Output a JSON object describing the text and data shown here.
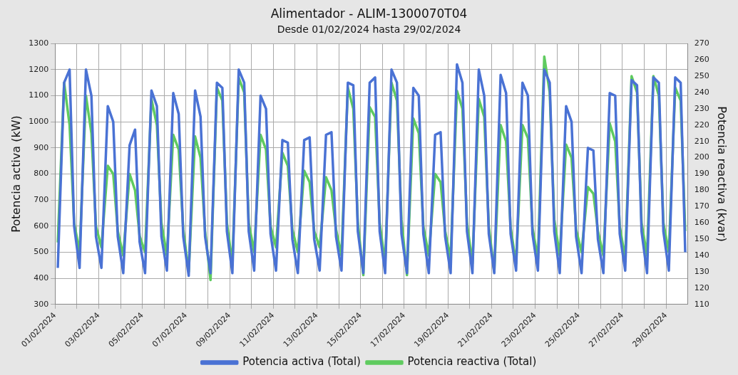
{
  "chart_data": {
    "type": "line",
    "title": "Alimentador - ALIM-1300070T04",
    "subtitle": "Desde 01/02/2024 hasta 29/02/2024",
    "ylabel": "Potencia activa (kW)",
    "y2label": "Potencia reactiva (kvar)",
    "x": [
      "2024-02-01T03:00",
      "2024-02-01T10:00",
      "2024-02-01T16:00",
      "2024-02-01T21:00",
      "2024-02-02T03:00",
      "2024-02-02T10:00",
      "2024-02-02T16:00",
      "2024-02-02T21:00",
      "2024-02-03T03:00",
      "2024-02-03T10:00",
      "2024-02-03T16:00",
      "2024-02-03T21:00",
      "2024-02-04T03:00",
      "2024-02-04T10:00",
      "2024-02-04T16:00",
      "2024-02-04T21:00",
      "2024-02-05T03:00",
      "2024-02-05T10:00",
      "2024-02-05T16:00",
      "2024-02-05T21:00",
      "2024-02-06T03:00",
      "2024-02-06T10:00",
      "2024-02-06T16:00",
      "2024-02-06T21:00",
      "2024-02-07T03:00",
      "2024-02-07T10:00",
      "2024-02-07T16:00",
      "2024-02-07T21:00",
      "2024-02-08T03:00",
      "2024-02-08T10:00",
      "2024-02-08T16:00",
      "2024-02-08T21:00",
      "2024-02-09T03:00",
      "2024-02-09T10:00",
      "2024-02-09T16:00",
      "2024-02-09T21:00",
      "2024-02-10T03:00",
      "2024-02-10T10:00",
      "2024-02-10T16:00",
      "2024-02-10T21:00",
      "2024-02-11T03:00",
      "2024-02-11T10:00",
      "2024-02-11T16:00",
      "2024-02-11T21:00",
      "2024-02-12T03:00",
      "2024-02-12T10:00",
      "2024-02-12T16:00",
      "2024-02-12T21:00",
      "2024-02-13T03:00",
      "2024-02-13T10:00",
      "2024-02-13T16:00",
      "2024-02-13T21:00",
      "2024-02-14T03:00",
      "2024-02-14T10:00",
      "2024-02-14T16:00",
      "2024-02-14T21:00",
      "2024-02-15T03:00",
      "2024-02-15T10:00",
      "2024-02-15T16:00",
      "2024-02-15T21:00",
      "2024-02-16T03:00",
      "2024-02-16T10:00",
      "2024-02-16T16:00",
      "2024-02-16T21:00",
      "2024-02-17T03:00",
      "2024-02-17T10:00",
      "2024-02-17T16:00",
      "2024-02-17T21:00",
      "2024-02-18T03:00",
      "2024-02-18T10:00",
      "2024-02-18T16:00",
      "2024-02-18T21:00",
      "2024-02-19T03:00",
      "2024-02-19T10:00",
      "2024-02-19T16:00",
      "2024-02-19T21:00",
      "2024-02-20T03:00",
      "2024-02-20T10:00",
      "2024-02-20T16:00",
      "2024-02-20T21:00",
      "2024-02-21T03:00",
      "2024-02-21T10:00",
      "2024-02-21T16:00",
      "2024-02-21T21:00",
      "2024-02-22T03:00",
      "2024-02-22T10:00",
      "2024-02-22T16:00",
      "2024-02-22T21:00",
      "2024-02-23T03:00",
      "2024-02-23T10:00",
      "2024-02-23T16:00",
      "2024-02-23T21:00",
      "2024-02-24T03:00",
      "2024-02-24T10:00",
      "2024-02-24T16:00",
      "2024-02-24T21:00",
      "2024-02-25T03:00",
      "2024-02-25T10:00",
      "2024-02-25T16:00",
      "2024-02-25T21:00",
      "2024-02-26T03:00",
      "2024-02-26T10:00",
      "2024-02-26T16:00",
      "2024-02-26T21:00",
      "2024-02-27T03:00",
      "2024-02-27T10:00",
      "2024-02-27T16:00",
      "2024-02-27T21:00",
      "2024-02-28T03:00",
      "2024-02-28T10:00",
      "2024-02-28T16:00",
      "2024-02-28T21:00",
      "2024-02-29T03:00",
      "2024-02-29T10:00",
      "2024-02-29T16:00",
      "2024-02-29T21:00"
    ],
    "series": [
      {
        "name": "Potencia activa (Total)",
        "color": "#4a72d4",
        "values": [
          440,
          1150,
          1200,
          600,
          440,
          1200,
          1100,
          560,
          440,
          1060,
          1000,
          560,
          420,
          910,
          970,
          540,
          420,
          1120,
          1060,
          560,
          430,
          1110,
          1030,
          560,
          410,
          1120,
          1020,
          560,
          420,
          1150,
          1130,
          580,
          420,
          1200,
          1150,
          580,
          430,
          1100,
          1050,
          570,
          430,
          930,
          920,
          550,
          420,
          930,
          940,
          550,
          430,
          950,
          960,
          560,
          430,
          1150,
          1140,
          580,
          420,
          1150,
          1170,
          580,
          420,
          1200,
          1150,
          570,
          420,
          1130,
          1100,
          570,
          420,
          950,
          960,
          560,
          420,
          1220,
          1150,
          580,
          420,
          1200,
          1100,
          570,
          420,
          1180,
          1110,
          570,
          430,
          1150,
          1100,
          570,
          430,
          1200,
          1150,
          580,
          420,
          1060,
          1000,
          560,
          420,
          900,
          890,
          550,
          420,
          1110,
          1100,
          570,
          430,
          1160,
          1140,
          580,
          420,
          1170,
          1150,
          580,
          430,
          1170,
          1150,
          500
        ]
      },
      {
        "name": "Potencia reactiva (Total)",
        "color": "#5fcb5f",
        "axis": "y2",
        "values": [
          148,
          246,
          220,
          160,
          142,
          238,
          215,
          158,
          145,
          195,
          190,
          155,
          140,
          190,
          180,
          152,
          142,
          236,
          220,
          160,
          140,
          214,
          205,
          156,
          130,
          213,
          200,
          155,
          125,
          243,
          235,
          160,
          135,
          249,
          240,
          160,
          142,
          214,
          205,
          158,
          145,
          203,
          195,
          156,
          142,
          192,
          185,
          155,
          145,
          188,
          180,
          156,
          140,
          243,
          230,
          160,
          128,
          231,
          225,
          160,
          135,
          246,
          235,
          162,
          128,
          224,
          215,
          158,
          140,
          190,
          185,
          155,
          138,
          241,
          230,
          160,
          135,
          236,
          225,
          158,
          130,
          220,
          210,
          157,
          135,
          220,
          212,
          157,
          138,
          262,
          240,
          162,
          140,
          208,
          200,
          156,
          142,
          182,
          178,
          155,
          140,
          221,
          210,
          158,
          138,
          250,
          240,
          160,
          140,
          250,
          238,
          160,
          142,
          243,
          235,
          155
        ]
      }
    ],
    "xlim": [
      "2024-02-01",
      "2024-03-01"
    ],
    "xticks": [
      {
        "value": "2024-02-01",
        "label": "01/02/2024"
      },
      {
        "value": "2024-02-02",
        "label": null
      },
      {
        "value": "2024-02-03",
        "label": "03/02/2024"
      },
      {
        "value": "2024-02-04",
        "label": null
      },
      {
        "value": "2024-02-05",
        "label": "05/02/2024"
      },
      {
        "value": "2024-02-06",
        "label": null
      },
      {
        "value": "2024-02-07",
        "label": "07/02/2024"
      },
      {
        "value": "2024-02-08",
        "label": null
      },
      {
        "value": "2024-02-09",
        "label": "09/02/2024"
      },
      {
        "value": "2024-02-10",
        "label": null
      },
      {
        "value": "2024-02-11",
        "label": "11/02/2024"
      },
      {
        "value": "2024-02-12",
        "label": null
      },
      {
        "value": "2024-02-13",
        "label": "13/02/2024"
      },
      {
        "value": "2024-02-14",
        "label": null
      },
      {
        "value": "2024-02-15",
        "label": "15/02/2024"
      },
      {
        "value": "2024-02-16",
        "label": null
      },
      {
        "value": "2024-02-17",
        "label": "17/02/2024"
      },
      {
        "value": "2024-02-18",
        "label": null
      },
      {
        "value": "2024-02-19",
        "label": "19/02/2024"
      },
      {
        "value": "2024-02-20",
        "label": null
      },
      {
        "value": "2024-02-21",
        "label": "21/02/2024"
      },
      {
        "value": "2024-02-22",
        "label": null
      },
      {
        "value": "2024-02-23",
        "label": "23/02/2024"
      },
      {
        "value": "2024-02-24",
        "label": null
      },
      {
        "value": "2024-02-25",
        "label": "25/02/2024"
      },
      {
        "value": "2024-02-26",
        "label": null
      },
      {
        "value": "2024-02-27",
        "label": "27/02/2024"
      },
      {
        "value": "2024-02-28",
        "label": null
      },
      {
        "value": "2024-02-29",
        "label": "29/02/2024"
      }
    ],
    "ylim": [
      300,
      1300
    ],
    "yticks": [
      300,
      400,
      500,
      600,
      700,
      800,
      900,
      1000,
      1100,
      1200,
      1300
    ],
    "y2lim": [
      110,
      270
    ],
    "y2ticks": [
      110,
      120,
      130,
      140,
      150,
      160,
      170,
      180,
      190,
      200,
      210,
      220,
      230,
      240,
      250,
      260,
      270
    ],
    "grid": true,
    "legend": "bottom"
  }
}
